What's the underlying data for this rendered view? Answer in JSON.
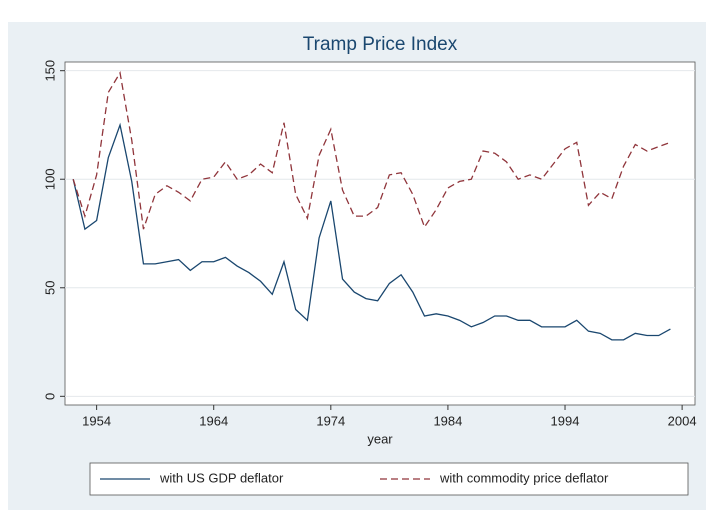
{
  "chart_data": {
    "type": "line",
    "title": "Tramp Price Index",
    "x_label": "year",
    "x": [
      1952,
      1953,
      1954,
      1955,
      1956,
      1957,
      1958,
      1959,
      1960,
      1961,
      1962,
      1963,
      1964,
      1965,
      1966,
      1967,
      1968,
      1969,
      1970,
      1971,
      1972,
      1973,
      1974,
      1975,
      1976,
      1977,
      1978,
      1979,
      1980,
      1981,
      1982,
      1983,
      1984,
      1985,
      1986,
      1987,
      1988,
      1989,
      1990,
      1991,
      1992,
      1993,
      1994,
      1995,
      1996,
      1997,
      1998,
      1999,
      2000,
      2001,
      2002,
      2003
    ],
    "series": [
      {
        "name": "with US GDP deflator",
        "color": "#1a476f",
        "dash": false,
        "values": [
          100,
          77,
          81,
          110,
          125,
          99,
          61,
          61,
          62,
          63,
          58,
          62,
          62,
          64,
          60,
          57,
          53,
          47,
          62,
          40,
          35,
          73,
          90,
          54,
          48,
          45,
          44,
          52,
          56,
          48,
          37,
          38,
          37,
          35,
          32,
          34,
          37,
          37,
          35,
          35,
          32,
          32,
          32,
          35,
          30,
          29,
          26,
          26,
          29,
          28,
          28,
          31
        ]
      },
      {
        "name": "with commodity price deflator",
        "color": "#90353b",
        "dash": true,
        "values": [
          100,
          83,
          102,
          140,
          149,
          118,
          77,
          93,
          97,
          94,
          90,
          100,
          101,
          108,
          100,
          102,
          107,
          103,
          126,
          93,
          82,
          111,
          123,
          95,
          83,
          83,
          87,
          102,
          103,
          93,
          78,
          86,
          96,
          99,
          100,
          113,
          112,
          108,
          100,
          102,
          100,
          107,
          114,
          117,
          88,
          94,
          91,
          106,
          116,
          113,
          115,
          117
        ]
      }
    ],
    "xlim": [
      1951.3,
      2005.1
    ],
    "ylim": [
      -4,
      154
    ],
    "xticks": [
      1954,
      1964,
      1974,
      1984,
      1994,
      2004
    ],
    "yticks": [
      0,
      50,
      100,
      150
    ],
    "grid": true,
    "legend": "bottom"
  }
}
